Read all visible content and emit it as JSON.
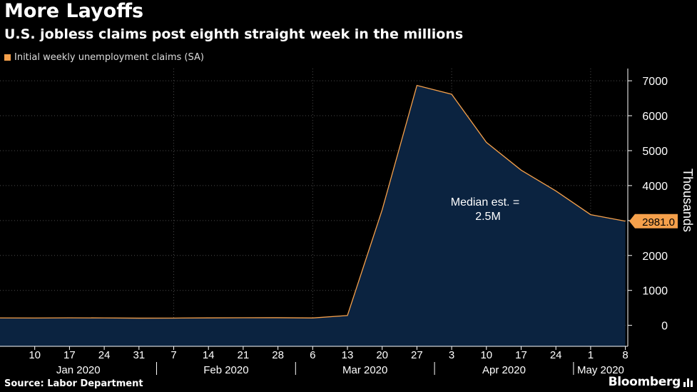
{
  "header": {
    "title": "More Layoffs",
    "subtitle": "U.S. jobless claims post eighth straight week in the millions"
  },
  "footer": {
    "source": "Source: Labor Department",
    "brand": "Bloomberg",
    "brand_icon": "bloomberg-bars-icon"
  },
  "colors": {
    "background": "#000000",
    "line": "#f5a04b",
    "area": "#0b2340",
    "grid": "#4a4a4a",
    "axis_text": "#ffffff",
    "label_bg": "#f5a04b"
  },
  "chart_data": {
    "type": "area",
    "legend": "Initial weekly unemployment claims (SA)",
    "ylabel": "Thousands",
    "xlabel": "",
    "ylim": [
      -600,
      7350
    ],
    "yticks": [
      0,
      1000,
      2000,
      3000,
      4000,
      5000,
      6000,
      7000
    ],
    "x_day_labels": [
      "10",
      "17",
      "24",
      "31",
      "7",
      "14",
      "21",
      "28",
      "6",
      "13",
      "20",
      "27",
      "3",
      "10",
      "17",
      "24",
      "1",
      "8"
    ],
    "month_labels": [
      "Jan 2020",
      "Feb 2020",
      "Mar 2020",
      "Apr 2020",
      "May 2020"
    ],
    "series": [
      {
        "name": "Initial weekly unemployment claims (SA)",
        "x": [
          "Jan 4",
          "Jan 11",
          "Jan 18",
          "Jan 25",
          "Feb 1",
          "Feb 8",
          "Feb 15",
          "Feb 22",
          "Feb 29",
          "Mar 7",
          "Mar 14",
          "Mar 21",
          "Mar 28",
          "Apr 4",
          "Apr 11",
          "Apr 18",
          "Apr 25",
          "May 2",
          "May 9"
        ],
        "values": [
          212,
          210,
          215,
          212,
          206,
          208,
          214,
          217,
          219,
          211,
          282,
          3307,
          6867,
          6615,
          5237,
          4442,
          3846,
          3169,
          2981
        ]
      }
    ],
    "last_value_label": "2981.0",
    "annotation": {
      "line1": "Median est. =",
      "line2": "2.5M"
    }
  }
}
